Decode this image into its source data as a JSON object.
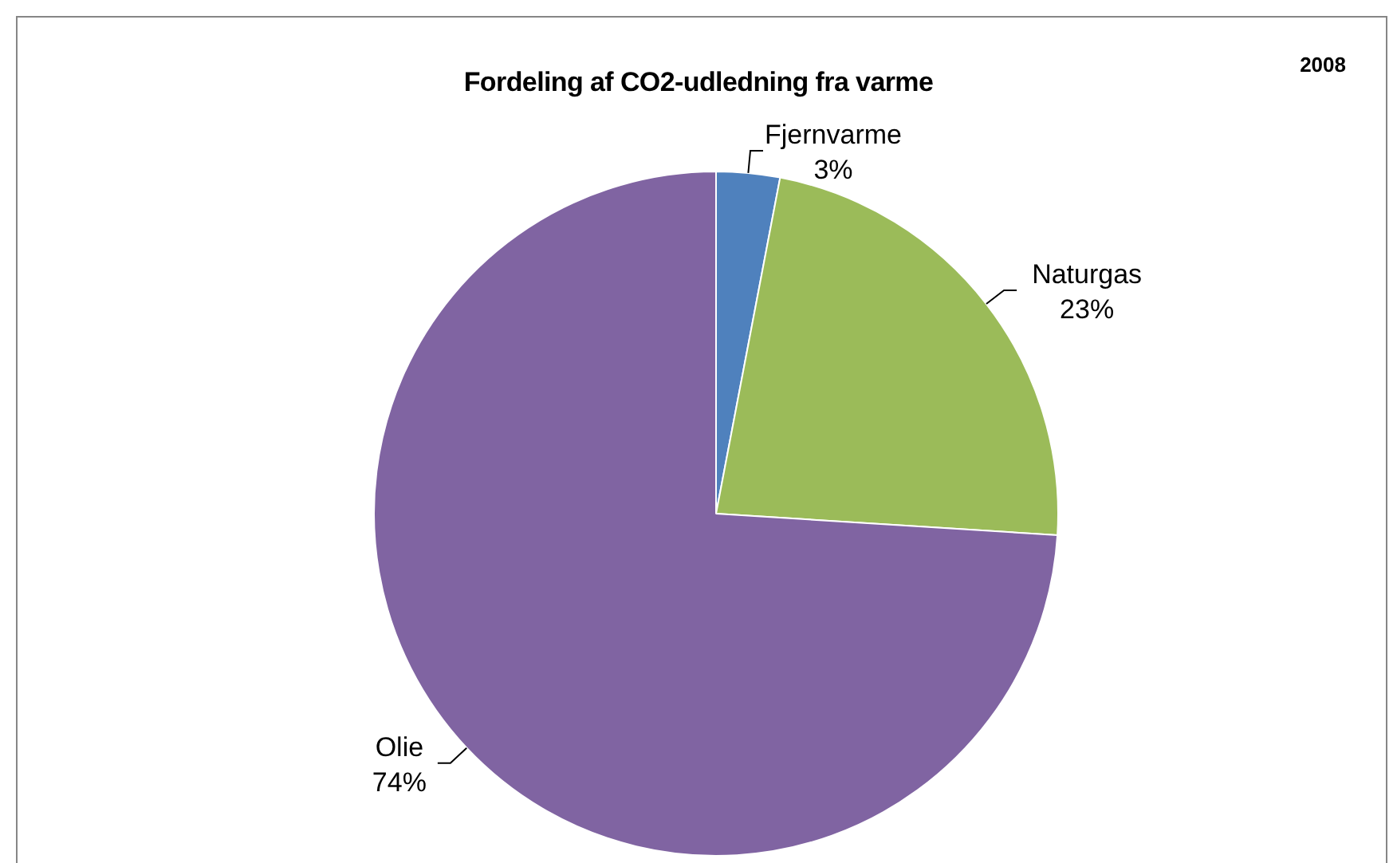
{
  "chart_data": {
    "type": "pie",
    "title": "Fordeling af CO2-udledning fra varme",
    "annotations": [
      "2008"
    ],
    "categories": [
      "Fjernvarme",
      "Naturgas",
      "Olie"
    ],
    "values": [
      3,
      23,
      74
    ],
    "colors": [
      "#4f81bd",
      "#9bbb59",
      "#8064a2"
    ],
    "value_labels": [
      "3%",
      "23%",
      "74%"
    ],
    "legend": false
  }
}
